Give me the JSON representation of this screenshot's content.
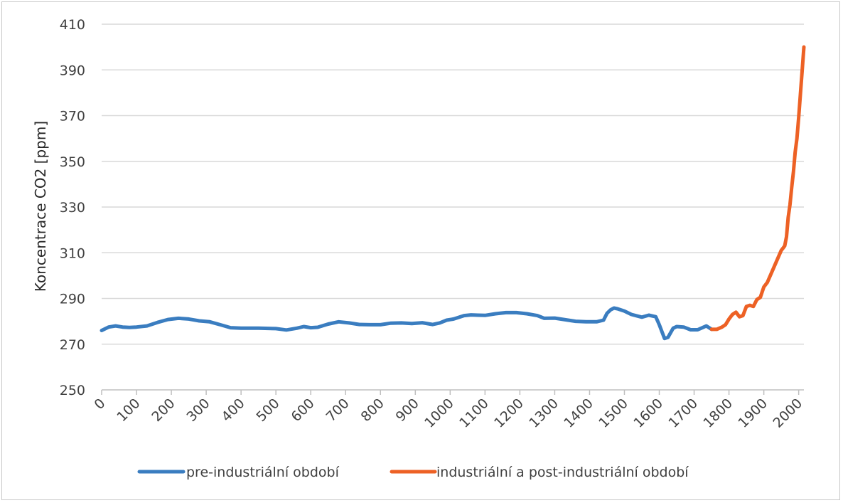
{
  "chart_data": {
    "type": "line",
    "title": "",
    "xlabel": "",
    "ylabel": "Koncentrace CO2  [ppm]",
    "xlim": [
      0,
      2015
    ],
    "ylim": [
      250,
      410
    ],
    "y_ticks": [
      250,
      270,
      290,
      310,
      330,
      350,
      370,
      390,
      410
    ],
    "x_ticks": [
      0,
      100,
      200,
      300,
      400,
      500,
      600,
      700,
      800,
      900,
      1000,
      1100,
      1200,
      1300,
      1400,
      1500,
      1600,
      1700,
      1800,
      1900,
      2000
    ],
    "grid": "horizontal",
    "legend": "bottom",
    "series": [
      {
        "name": "pre-industriální období",
        "color": "#3a7dc0",
        "x": [
          0,
          20,
          40,
          60,
          80,
          100,
          130,
          160,
          190,
          220,
          250,
          280,
          310,
          340,
          370,
          400,
          450,
          500,
          530,
          560,
          580,
          600,
          620,
          650,
          680,
          710,
          740,
          770,
          800,
          830,
          860,
          890,
          920,
          950,
          970,
          990,
          1010,
          1040,
          1060,
          1080,
          1100,
          1130,
          1160,
          1190,
          1220,
          1250,
          1270,
          1300,
          1330,
          1360,
          1390,
          1420,
          1440,
          1450,
          1460,
          1470,
          1480,
          1500,
          1520,
          1550,
          1570,
          1590,
          1600,
          1615,
          1625,
          1640,
          1650,
          1670,
          1690,
          1710,
          1725,
          1735,
          1750
        ],
        "values": [
          276,
          277.5,
          278,
          277.5,
          277.3,
          277.5,
          278,
          279.5,
          280.8,
          281.3,
          281,
          280.2,
          279.8,
          278.5,
          277.2,
          277,
          277,
          276.8,
          276.2,
          277,
          277.7,
          277.2,
          277.4,
          278.8,
          279.8,
          279.3,
          278.6,
          278.5,
          278.5,
          279.2,
          279.3,
          279,
          279.4,
          278.6,
          279.3,
          280.5,
          281,
          282.5,
          282.8,
          282.7,
          282.6,
          283.3,
          283.8,
          283.8,
          283.3,
          282.5,
          281.3,
          281.4,
          280.7,
          280,
          279.8,
          279.8,
          280.5,
          283.5,
          285,
          285.8,
          285.5,
          284.5,
          283,
          281.8,
          282.7,
          282,
          278.5,
          272.5,
          273,
          277,
          277.7,
          277.5,
          276.3,
          276.3,
          277.3,
          278,
          276.5
        ]
      },
      {
        "name": "industriální a post-industriální období",
        "color": "#ed6125",
        "x": [
          1750,
          1765,
          1780,
          1790,
          1800,
          1810,
          1820,
          1830,
          1840,
          1850,
          1860,
          1870,
          1880,
          1890,
          1900,
          1910,
          1920,
          1930,
          1940,
          1950,
          1955,
          1960,
          1965,
          1970,
          1975,
          1980,
          1985,
          1990,
          1995,
          2000,
          2005,
          2010,
          2015
        ],
        "values": [
          276.5,
          276.5,
          277.5,
          278.5,
          281,
          283,
          284,
          282,
          282.5,
          286.5,
          287,
          286.5,
          289.5,
          290.5,
          295,
          297,
          300.5,
          304,
          307.5,
          311,
          312,
          313,
          317,
          325.5,
          331,
          338.5,
          345.5,
          354,
          360,
          369,
          379.5,
          389.5,
          400
        ]
      }
    ]
  }
}
